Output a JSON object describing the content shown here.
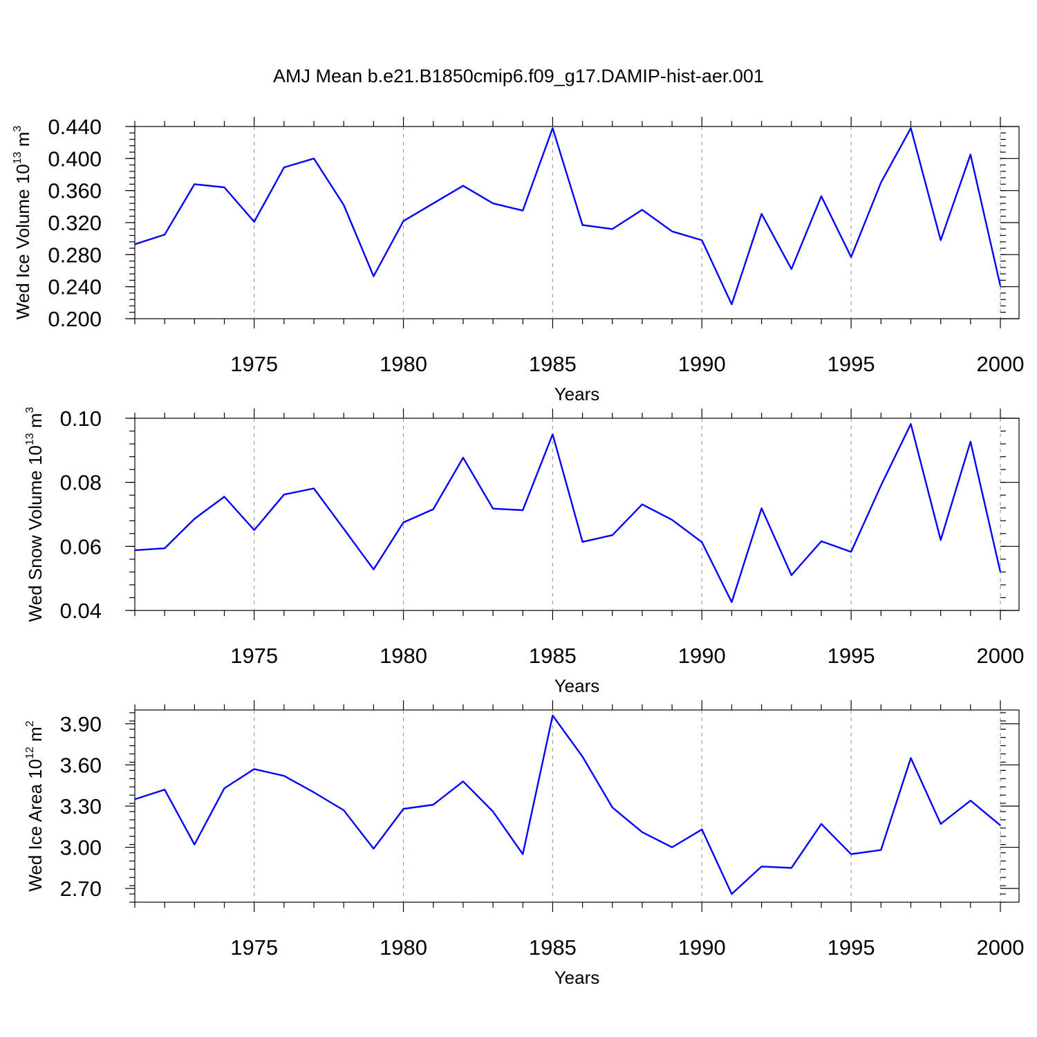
{
  "title": "AMJ Mean b.e21.B1850cmip6.f09_g17.DAMIP-hist-aer.001",
  "colors": {
    "line": "#0000ff",
    "axis": "#000000",
    "grid": "#999999"
  },
  "chart_data": [
    {
      "type": "line",
      "ylabel_main": "Wed Ice Volume 10",
      "ylabel_exp": "13",
      "ylabel_unit": " m",
      "ylabel_unit_exp": "3",
      "xlabel": "Years",
      "xlim": [
        1971,
        2000
      ],
      "ylim": [
        0.2,
        0.44
      ],
      "yticks": [
        0.2,
        0.24,
        0.28,
        0.32,
        0.36,
        0.4,
        0.44
      ],
      "ytick_labels": [
        "0.200",
        "0.240",
        "0.280",
        "0.320",
        "0.360",
        "0.400",
        "0.440"
      ],
      "yminor_step": 0.008,
      "xticks": [
        1975,
        1980,
        1985,
        1990,
        1995,
        2000
      ],
      "xtick_labels": [
        "1975",
        "1980",
        "1985",
        "1990",
        "1995",
        "2000"
      ],
      "x": [
        1971,
        1972,
        1973,
        1974,
        1975,
        1976,
        1977,
        1978,
        1979,
        1980,
        1981,
        1982,
        1983,
        1984,
        1985,
        1986,
        1987,
        1988,
        1989,
        1990,
        1991,
        1992,
        1993,
        1994,
        1995,
        1996,
        1997,
        1998,
        1999,
        2000
      ],
      "values": [
        0.293,
        0.305,
        0.368,
        0.364,
        0.321,
        0.389,
        0.4,
        0.342,
        0.253,
        0.322,
        0.344,
        0.366,
        0.344,
        0.335,
        0.438,
        0.317,
        0.312,
        0.336,
        0.309,
        0.298,
        0.218,
        0.331,
        0.262,
        0.353,
        0.277,
        0.37,
        0.438,
        0.298,
        0.405,
        0.241
      ]
    },
    {
      "type": "line",
      "ylabel_main": "Wed Snow Volume 10",
      "ylabel_exp": "13",
      "ylabel_unit": " m",
      "ylabel_unit_exp": "3",
      "xlabel": "Years",
      "xlim": [
        1971,
        2000
      ],
      "ylim": [
        0.04,
        0.1
      ],
      "yticks": [
        0.04,
        0.06,
        0.08,
        0.1
      ],
      "ytick_labels": [
        "0.04",
        "0.06",
        "0.08",
        "0.10"
      ],
      "yminor_step": 0.004,
      "xticks": [
        1975,
        1980,
        1985,
        1990,
        1995,
        2000
      ],
      "xtick_labels": [
        "1975",
        "1980",
        "1985",
        "1990",
        "1995",
        "2000"
      ],
      "x": [
        1971,
        1972,
        1973,
        1974,
        1975,
        1976,
        1977,
        1978,
        1979,
        1980,
        1981,
        1982,
        1983,
        1984,
        1985,
        1986,
        1987,
        1988,
        1989,
        1990,
        1991,
        1992,
        1993,
        1994,
        1995,
        1996,
        1997,
        1998,
        1999,
        2000
      ],
      "values": [
        0.0588,
        0.0594,
        0.0686,
        0.0755,
        0.0651,
        0.0762,
        0.0781,
        0.0655,
        0.0528,
        0.0675,
        0.0716,
        0.0877,
        0.0718,
        0.0713,
        0.095,
        0.0614,
        0.0635,
        0.0731,
        0.0683,
        0.0613,
        0.0426,
        0.0719,
        0.051,
        0.0616,
        0.0583,
        0.079,
        0.0982,
        0.062,
        0.0927,
        0.052
      ]
    },
    {
      "type": "line",
      "ylabel_main": "Wed Ice Area 10",
      "ylabel_exp": "12",
      "ylabel_unit": " m",
      "ylabel_unit_exp": "2",
      "xlabel": "Years",
      "xlim": [
        1971,
        2000
      ],
      "ylim": [
        2.6,
        4.0
      ],
      "yticks": [
        2.7,
        3.0,
        3.3,
        3.6,
        3.9
      ],
      "ytick_labels": [
        "2.70",
        "3.00",
        "3.30",
        "3.60",
        "3.90"
      ],
      "yminor_step": 0.06,
      "xticks": [
        1975,
        1980,
        1985,
        1990,
        1995,
        2000
      ],
      "xtick_labels": [
        "1975",
        "1980",
        "1985",
        "1990",
        "1995",
        "2000"
      ],
      "x": [
        1971,
        1972,
        1973,
        1974,
        1975,
        1976,
        1977,
        1978,
        1979,
        1980,
        1981,
        1982,
        1983,
        1984,
        1985,
        1986,
        1987,
        1988,
        1989,
        1990,
        1991,
        1992,
        1993,
        1994,
        1995,
        1996,
        1997,
        1998,
        1999,
        2000
      ],
      "values": [
        3.35,
        3.42,
        3.02,
        3.43,
        3.57,
        3.52,
        3.4,
        3.27,
        2.99,
        3.28,
        3.31,
        3.48,
        3.26,
        2.95,
        3.96,
        3.66,
        3.29,
        3.11,
        3.0,
        3.13,
        2.66,
        2.86,
        2.85,
        3.17,
        2.95,
        2.98,
        3.65,
        3.17,
        3.34,
        3.16
      ]
    }
  ]
}
